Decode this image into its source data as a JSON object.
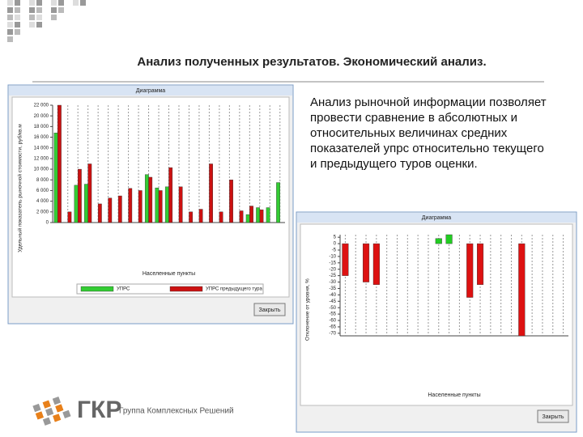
{
  "slide": {
    "title": "Анализ полученных результатов. Экономический анализ.",
    "text": "Анализ рыночной информации позволяет провести сравнение в абсолютных и относительных величинах средних показателей упрс относительно текущего и предыдущего туров оценки.",
    "logo": {
      "abbr": "ГКР",
      "name": "Группа Комплексных Решений"
    }
  },
  "chart_data": [
    {
      "type": "bar",
      "title": "Диаграмма",
      "button": "Закрыть",
      "ylabel": "Удельный показатель рыночной стоимости, руб/кв.м",
      "xlabel": "Населенные пункты",
      "categories": [
        null,
        null,
        null,
        null,
        null,
        null,
        null,
        null,
        null,
        null,
        null,
        null,
        null,
        null,
        null,
        null,
        null,
        null,
        null,
        null,
        null,
        null,
        null
      ],
      "series": [
        {
          "name": "УПРС",
          "color": "#33cc33",
          "values": [
            16800,
            0,
            7000,
            7200,
            0,
            0,
            0,
            0,
            0,
            9000,
            6500,
            6700,
            0,
            0,
            0,
            0,
            0,
            0,
            0,
            1500,
            2800,
            2800,
            7500
          ]
        },
        {
          "name": "УПРС предыдущего тура",
          "color": "#cc1111",
          "values": [
            22000,
            2000,
            10000,
            11000,
            3500,
            4600,
            5000,
            6400,
            6000,
            8500,
            6000,
            10300,
            6700,
            2000,
            2500,
            11000,
            2000,
            8000,
            2200,
            3100,
            2400,
            0,
            0
          ]
        }
      ],
      "ylim": [
        0,
        22000
      ],
      "yticks": [
        0,
        {
          "value": 2000,
          "label": "2 000"
        },
        {
          "value": 4000,
          "label": "4 000"
        },
        {
          "value": 6000,
          "label": "6 000"
        },
        {
          "value": 8000,
          "label": "8 000"
        },
        {
          "value": 10000,
          "label": "10 000"
        },
        {
          "value": 12000,
          "label": "12 000"
        },
        {
          "value": 14000,
          "label": "14 000"
        },
        {
          "value": 16000,
          "label": "16 000"
        },
        {
          "value": 18000,
          "label": "18 000"
        },
        {
          "value": 20000,
          "label": "20 000"
        },
        {
          "value": 22000,
          "label": "22 000"
        }
      ],
      "grid": true
    },
    {
      "type": "bar",
      "title": "Диаграмма",
      "button": "Закрыть",
      "ylabel": "Отклонение от уровня, %",
      "xlabel": "Населенные пункты",
      "categories": [
        null,
        null,
        null,
        null,
        null,
        null,
        null,
        null,
        null,
        null,
        null,
        null,
        null,
        null,
        null,
        null,
        null,
        null,
        null,
        null,
        null,
        null
      ],
      "values": [
        -25,
        0,
        -30,
        -32,
        0,
        0,
        0,
        0,
        0,
        4,
        7,
        0,
        -42,
        -32,
        0,
        0,
        0,
        -72,
        0,
        0,
        0,
        0
      ],
      "colors": [
        "#dd1111",
        "#dd1111",
        "#dd1111",
        "#dd1111",
        "#dd1111",
        "#dd1111",
        "#dd1111",
        "#dd1111",
        "#dd1111",
        "#22cc22",
        "#22cc22",
        "#dd1111",
        "#dd1111",
        "#dd1111",
        "#dd1111",
        "#dd1111",
        "#dd1111",
        "#dd1111",
        "#dd1111",
        "#dd1111",
        "#dd1111",
        "#dd1111"
      ],
      "ylim": [
        -72,
        7
      ],
      "yticks": [
        5,
        0,
        -5,
        -10,
        -15,
        -20,
        -25,
        -30,
        -35,
        -40,
        -45,
        -50,
        -55,
        -60,
        -65,
        -70
      ],
      "grid": true
    }
  ]
}
